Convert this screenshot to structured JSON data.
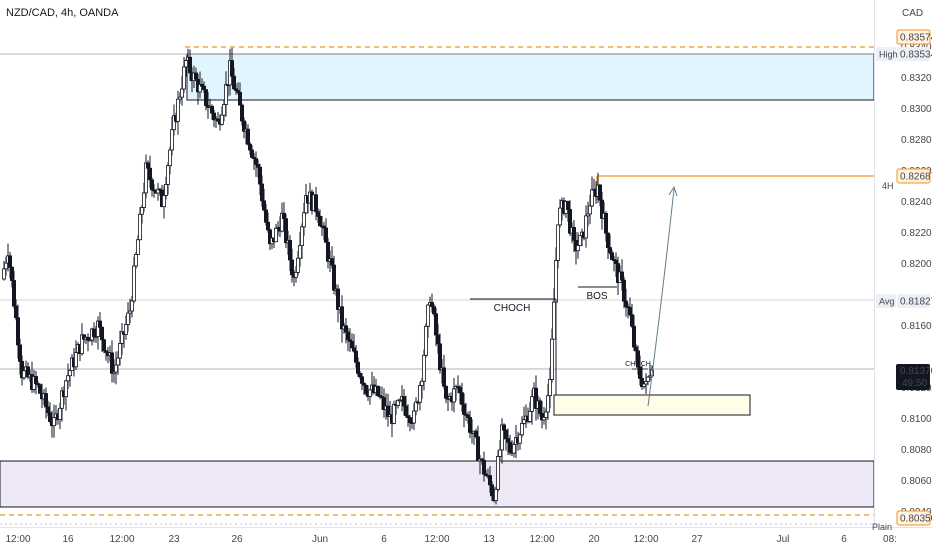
{
  "header": {
    "symbol_line": "NZD/CAD, 4h, OANDA",
    "currency": "CAD"
  },
  "colors": {
    "up": "#26a69a",
    "down": "#ef5350",
    "candle_body": "#ffffff",
    "candle_outline": "#131722",
    "orange": "#f7931a",
    "supply_zone": "#e1f5fe",
    "demand_zone": "#ede7f6",
    "order_block": "#fffde7"
  },
  "chart_data": {
    "type": "candlestick",
    "title": "NZD/CAD, 4h, OANDA",
    "y_axis": {
      "ylim": [
        0.803,
        0.837
      ],
      "ticks": [
        "0.83400",
        "0.83200",
        "0.83000",
        "0.82800",
        "0.82600",
        "0.82400",
        "0.82200",
        "0.82000",
        "0.81600",
        "0.81200",
        "0.81000",
        "0.80800",
        "0.80600",
        "0.80400"
      ]
    },
    "x_axis": {
      "ticks": [
        "12:00",
        "16",
        "12:00",
        "23",
        "26",
        "Jun",
        "6",
        "12:00",
        "13",
        "12:00",
        "20",
        "12:00",
        "27",
        "Jul",
        "6",
        "08:"
      ]
    },
    "price_tags": [
      {
        "value": "0.83574",
        "kind": "orange"
      },
      {
        "value": "0.83534",
        "kind": "plain",
        "label": "High"
      },
      {
        "value": "0.82687",
        "kind": "orange"
      },
      {
        "value": "0.81827",
        "kind": "plain",
        "label": "Avg"
      },
      {
        "value": "0.81370",
        "kind": "dark",
        "countdown": "49:50"
      },
      {
        "value": "0.80350",
        "kind": "orange"
      }
    ],
    "annotations": {
      "choch_label": "CHOCH",
      "bos_label": "BOS",
      "small_choch_label": "CHOCH",
      "tf_label": "4H",
      "bottom_label": "Plain"
    },
    "ohlc_anchor_points": [
      [
        0,
        0.819
      ],
      [
        3,
        0.821
      ],
      [
        10,
        0.813
      ],
      [
        18,
        0.812
      ],
      [
        26,
        0.8095
      ],
      [
        32,
        0.8125
      ],
      [
        40,
        0.815
      ],
      [
        48,
        0.816
      ],
      [
        56,
        0.813
      ],
      [
        64,
        0.817
      ],
      [
        72,
        0.826
      ],
      [
        80,
        0.824
      ],
      [
        86,
        0.829
      ],
      [
        92,
        0.833
      ],
      [
        100,
        0.831
      ],
      [
        108,
        0.829
      ],
      [
        114,
        0.8325
      ],
      [
        120,
        0.8295
      ],
      [
        128,
        0.826
      ],
      [
        134,
        0.821
      ],
      [
        140,
        0.823
      ],
      [
        146,
        0.819
      ],
      [
        152,
        0.8245
      ],
      [
        158,
        0.8235
      ],
      [
        164,
        0.82
      ],
      [
        170,
        0.816
      ],
      [
        176,
        0.814
      ],
      [
        182,
        0.812
      ],
      [
        188,
        0.8115
      ],
      [
        194,
        0.81
      ],
      [
        200,
        0.811
      ],
      [
        206,
        0.81
      ],
      [
        210,
        0.813
      ],
      [
        214,
        0.818
      ],
      [
        218,
        0.8145
      ],
      [
        222,
        0.811
      ],
      [
        228,
        0.812
      ],
      [
        234,
        0.8095
      ],
      [
        240,
        0.807
      ],
      [
        246,
        0.805
      ],
      [
        250,
        0.809
      ],
      [
        254,
        0.808
      ],
      [
        258,
        0.809
      ],
      [
        262,
        0.81
      ],
      [
        266,
        0.8115
      ],
      [
        270,
        0.81
      ],
      [
        274,
        0.812
      ],
      [
        278,
        0.823
      ],
      [
        282,
        0.824
      ],
      [
        286,
        0.821
      ],
      [
        290,
        0.8215
      ],
      [
        294,
        0.824
      ],
      [
        298,
        0.825
      ],
      [
        302,
        0.822
      ],
      [
        306,
        0.82
      ],
      [
        310,
        0.8185
      ],
      [
        314,
        0.8165
      ],
      [
        318,
        0.813
      ],
      [
        322,
        0.812
      ],
      [
        325,
        0.8137
      ]
    ]
  }
}
